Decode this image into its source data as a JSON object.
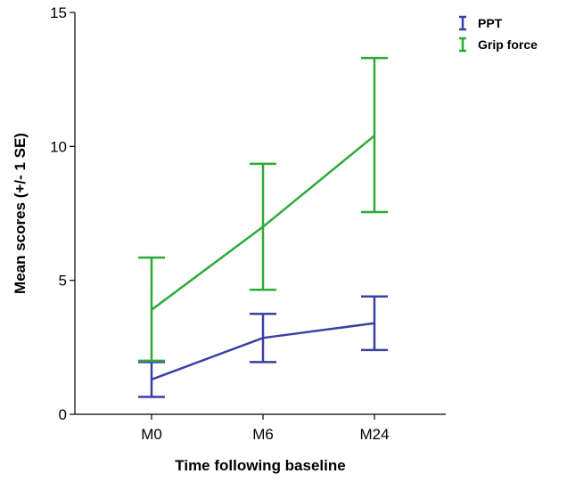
{
  "chart_data": {
    "type": "line",
    "xlabel": "Time following baseline",
    "ylabel": "Mean scores (+/- 1 SE)",
    "categories": [
      "M0",
      "M6",
      "M24"
    ],
    "ylim": [
      0,
      15
    ],
    "yticks": [
      0,
      5,
      10,
      15
    ],
    "grid": false,
    "legend_position": "top-right",
    "series": [
      {
        "name": "PPT",
        "color": "#3a3fa6",
        "means": [
          1.3,
          2.85,
          3.4
        ],
        "upper": [
          1.95,
          3.75,
          4.4
        ],
        "lower": [
          0.65,
          1.95,
          2.4
        ]
      },
      {
        "name": "Grip force",
        "color": "#2eaa36",
        "means": [
          3.9,
          7.0,
          10.4
        ],
        "upper": [
          5.85,
          9.35,
          13.3
        ],
        "lower": [
          2.0,
          4.65,
          7.55
        ]
      }
    ]
  }
}
